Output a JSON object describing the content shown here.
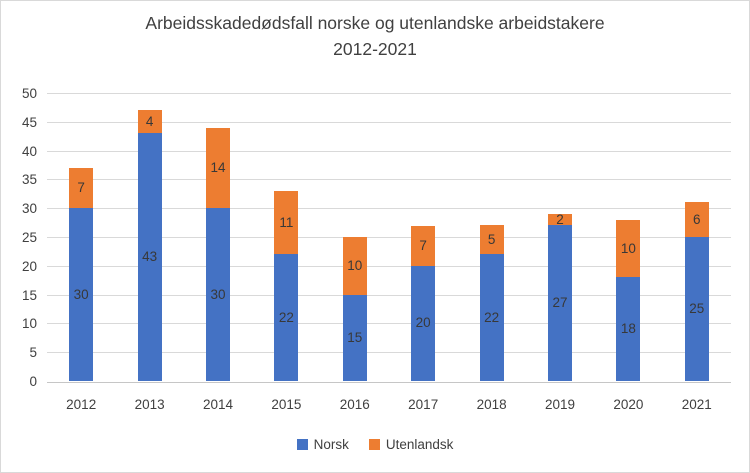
{
  "chart_data": {
    "type": "bar",
    "stacked": true,
    "title": "Arbeidsskadedødsfall norske og utenlandske arbeidstakere 2012-2021",
    "title_line1": "Arbeidsskadedødsfall norske og utenlandske arbeidstakere",
    "title_line2": "2012-2021",
    "categories": [
      "2012",
      "2013",
      "2014",
      "2015",
      "2016",
      "2017",
      "2018",
      "2019",
      "2020",
      "2021"
    ],
    "series": [
      {
        "name": "Norsk",
        "color": "#4472C4",
        "values": [
          30,
          43,
          30,
          22,
          15,
          20,
          22,
          27,
          18,
          25
        ]
      },
      {
        "name": "Utenlandsk",
        "color": "#ED7D31",
        "values": [
          7,
          4,
          14,
          11,
          10,
          7,
          5,
          2,
          10,
          6
        ]
      }
    ],
    "totals": [
      37,
      47,
      44,
      33,
      25,
      27,
      27,
      29,
      28,
      31
    ],
    "yticks": [
      0,
      5,
      10,
      15,
      20,
      25,
      30,
      35,
      40,
      45,
      50
    ],
    "ylim": [
      0,
      50
    ],
    "xlabel": "",
    "ylabel": "",
    "grid": "horizontal",
    "legend_position": "bottom",
    "data_labels": "center",
    "colors": {
      "gridline": "#d9d9d9",
      "axis_line": "#c6c6c6",
      "text": "#404040",
      "data_label_text": "#383838"
    }
  }
}
